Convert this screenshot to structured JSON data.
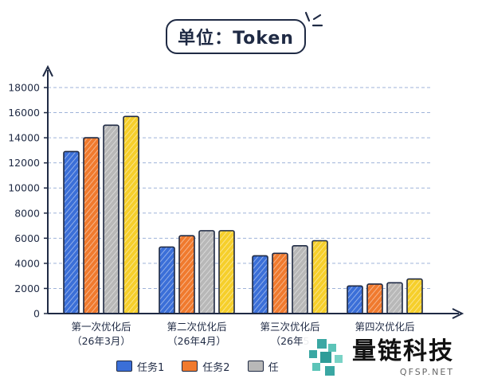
{
  "chart_data": {
    "type": "bar",
    "title": "单位：Token",
    "categories": [
      [
        "第一次优化后",
        "（26年3月）"
      ],
      [
        "第二次优化后",
        "（26年4月）"
      ],
      [
        "第三次优化后",
        "（26年5"
      ],
      [
        "第四次优化后",
        ""
      ]
    ],
    "series": [
      {
        "name": "任务1",
        "values": [
          12900,
          5300,
          4600,
          2200
        ],
        "color": "#3b6fd8"
      },
      {
        "name": "任务2",
        "values": [
          14000,
          6200,
          4800,
          2350
        ],
        "color": "#f07a2e"
      },
      {
        "name": "任",
        "values": [
          15000,
          6600,
          5400,
          2450
        ],
        "color": "#b8b8b8"
      },
      {
        "name": "",
        "values": [
          15700,
          6600,
          5800,
          2750
        ],
        "color": "#f6cf2b"
      }
    ],
    "y_ticks": [
      "0",
      "2000",
      "4000",
      "6000",
      "8000",
      "10000",
      "12000",
      "14000",
      "16000",
      "18000"
    ],
    "ylim": [
      0,
      18000
    ],
    "grid": true,
    "legend_position": "bottom"
  },
  "watermark": {
    "name": "量链科技",
    "sub": "QFSP.NET"
  }
}
